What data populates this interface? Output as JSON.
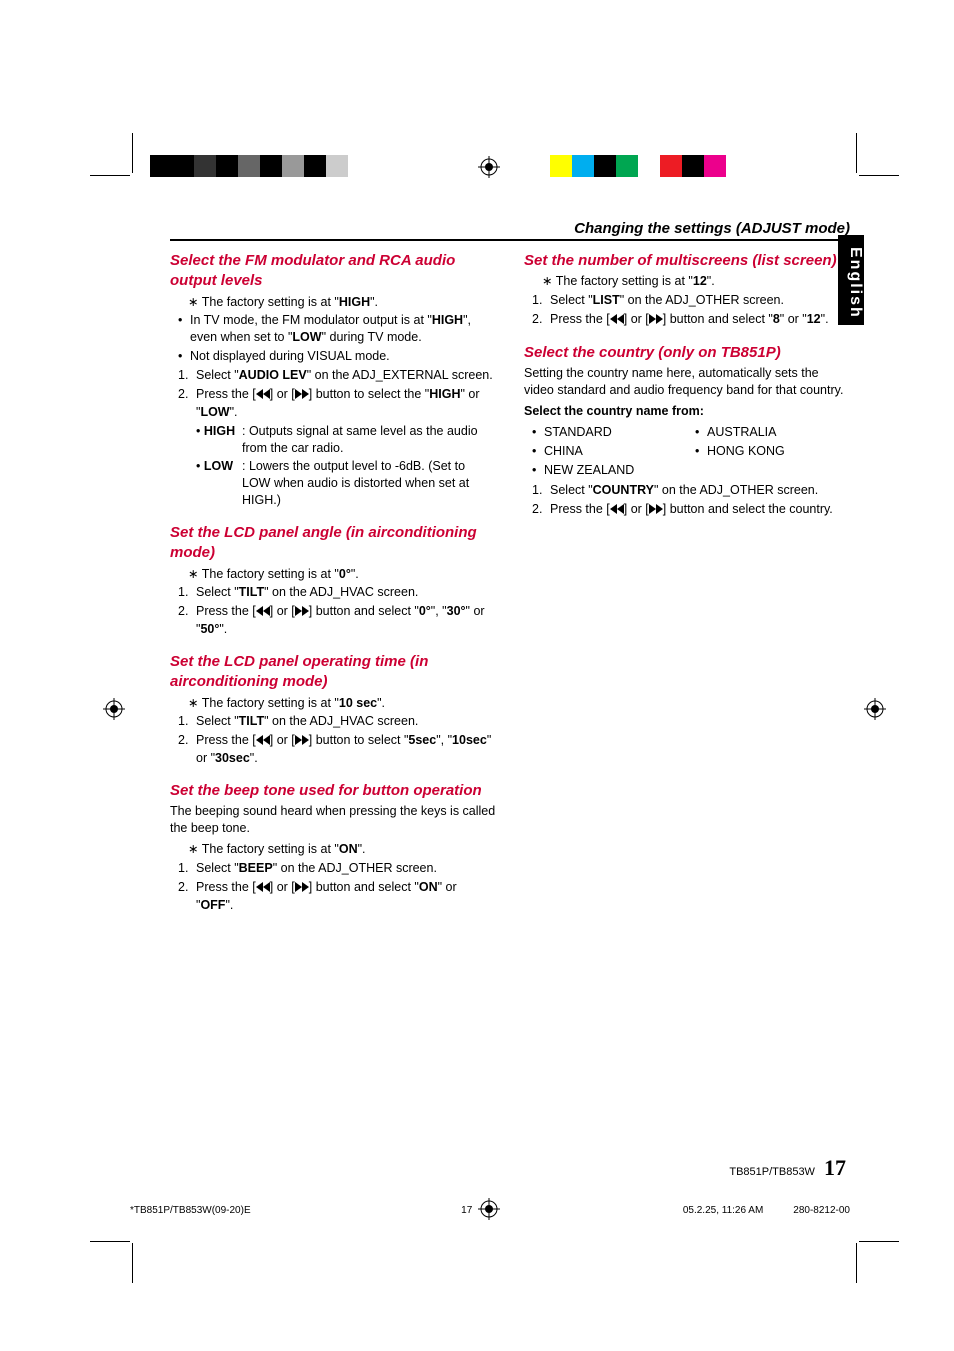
{
  "header": {
    "title": "Changing the settings (ADJUST mode)"
  },
  "sideTab": "English",
  "left": {
    "s1": {
      "title": "Select the FM modulator and RCA audio output levels",
      "factory_pre": "The factory setting is at \"",
      "factory_val": "HIGH",
      "factory_post": "\".",
      "b1a": "In TV mode, the FM modulator output is at \"",
      "b1b": "HIGH",
      "b1c": "\", even when set to \"",
      "b1d": "LOW",
      "b1e": "\" during TV mode.",
      "b2": "Not displayed during VISUAL mode.",
      "st1a": "Select \"",
      "st1b": "AUDIO LEV",
      "st1c": "\" on the ADJ_EXTERNAL screen.",
      "st2a": "Press the [",
      "st2b": "] or [",
      "st2c": "] button to select the \"",
      "st2d": "HIGH",
      "st2e": "\" or \"",
      "st2f": "LOW",
      "st2g": "\".",
      "hi_tag": "HIGH",
      "hi_txt": ": Outputs signal at same level as the audio from the car radio.",
      "lo_tag": "LOW",
      "lo_txt": ": Lowers the output level to -6dB. (Set to LOW when audio is distorted when set at HIGH.)"
    },
    "s2": {
      "title": "Set the LCD panel angle (in airconditioning mode)",
      "factory_pre": "The factory setting is at \"",
      "factory_val": "0°",
      "factory_post": "\".",
      "st1a": "Select \"",
      "st1b": "TILT",
      "st1c": "\" on the ADJ_HVAC screen.",
      "st2a": "Press the [",
      "st2b": "] or [",
      "st2c": "] button and select \"",
      "st2d": "0°",
      "st2e": "\", \"",
      "st2f": "30°",
      "st2g": "\" or \"",
      "st2h": "50°",
      "st2i": "\"."
    },
    "s3": {
      "title": "Set the LCD panel operating time (in airconditioning mode)",
      "factory_pre": "The factory setting is at \"",
      "factory_val": "10 sec",
      "factory_post": "\".",
      "st1a": "Select \"",
      "st1b": "TILT",
      "st1c": "\" on the ADJ_HVAC screen.",
      "st2a": "Press the [",
      "st2b": "] or [",
      "st2c": "] button to select \"",
      "st2d": "5sec",
      "st2e": "\", \"",
      "st2f": "10sec",
      "st2g": "\" or \"",
      "st2h": "30sec",
      "st2i": "\"."
    },
    "s4": {
      "title": "Set the beep tone used for button operation",
      "intro": "The beeping sound heard when pressing the keys is called the beep tone.",
      "factory_pre": "The factory setting is at \"",
      "factory_val": "ON",
      "factory_post": "\".",
      "st1a": "Select \"",
      "st1b": "BEEP",
      "st1c": "\" on the ADJ_OTHER screen.",
      "st2a": "Press the [",
      "st2b": "] or [",
      "st2c": "] button and select \"",
      "st2d": "ON",
      "st2e": "\" or \"",
      "st2f": "OFF",
      "st2g": "\"."
    }
  },
  "right": {
    "s1": {
      "title": "Set the number of multiscreens (list screen)",
      "factory_pre": "The factory setting is at \"",
      "factory_val": "12",
      "factory_post": "\".",
      "st1a": "Select \"",
      "st1b": "LIST",
      "st1c": "\" on the ADJ_OTHER screen.",
      "st2a": "Press the [",
      "st2b": "] or [",
      "st2c": "] button and select \"",
      "st2d": "8",
      "st2e": "\" or \"",
      "st2f": "12",
      "st2g": "\"."
    },
    "s2": {
      "title": "Select the country (only on TB851P)",
      "intro": "Setting the country name here, automatically sets the video standard and audio frequency band for that country.",
      "listlabel": "Select the country name from:",
      "c1": "STANDARD",
      "c2": "AUSTRALIA",
      "c3": "CHINA",
      "c4": "HONG KONG",
      "c5": "NEW ZEALAND",
      "st1a": "Select \"",
      "st1b": "COUNTRY",
      "st1c": "\" on the ADJ_OTHER screen.",
      "st2a": "Press the [",
      "st2b": "] or [",
      "st2c": "] button and select the country."
    }
  },
  "footer": {
    "model": "TB851P/TB853W",
    "page": "17"
  },
  "printFooter": {
    "file": "*TB851P/TB853W(09-20)E",
    "mid": "17",
    "date": "05.2.25, 11:26 AM",
    "code": "280-8212-00"
  },
  "marks": {
    "gray_bar": [
      "#000000",
      "#000000",
      "#333333",
      "#000000",
      "#666666",
      "#000000",
      "#999999",
      "#000000",
      "#cccccc",
      "#ffffff"
    ],
    "color_bar": [
      "#ffff00",
      "#00aeef",
      "#000000",
      "#00a651",
      "#ffffff",
      "#ed1c24",
      "#000000",
      "#ec008c",
      "#ffffff"
    ]
  }
}
